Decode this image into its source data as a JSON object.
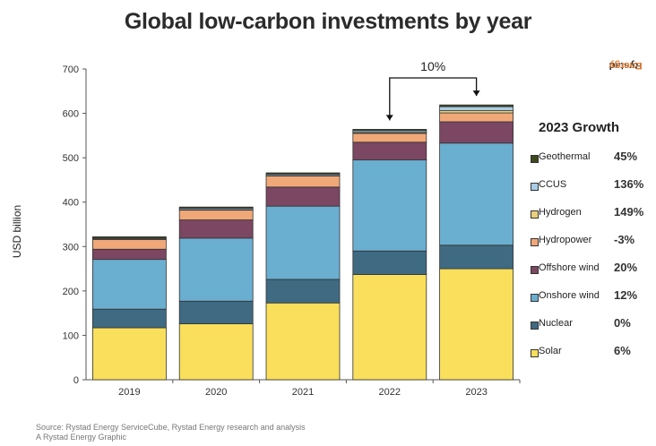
{
  "chart_data": {
    "type": "bar",
    "stacked": true,
    "title": "Global low-carbon investments by year",
    "xlabel": "",
    "ylabel": "USD billion",
    "ylim": [
      0,
      700
    ],
    "yticks": [
      0,
      100,
      200,
      300,
      400,
      500,
      600,
      700
    ],
    "grid": false,
    "categories": [
      "2019",
      "2020",
      "2021",
      "2022",
      "2023"
    ],
    "series": [
      {
        "name": "Solar",
        "color": "#f9df5b",
        "values": [
          117,
          126,
          173,
          237,
          250
        ]
      },
      {
        "name": "Nuclear",
        "color": "#3f6a82",
        "values": [
          42,
          51,
          53,
          53,
          53
        ]
      },
      {
        "name": "Onshore wind",
        "color": "#6aaed0",
        "values": [
          112,
          142,
          165,
          205,
          230
        ]
      },
      {
        "name": "Offshore wind",
        "color": "#7b4762",
        "values": [
          23,
          41,
          43,
          40,
          48
        ]
      },
      {
        "name": "Hydropower",
        "color": "#f0a878",
        "values": [
          22,
          22,
          25,
          20,
          20
        ]
      },
      {
        "name": "Hydrogen",
        "color": "#e8cf7a",
        "values": [
          1,
          1,
          1,
          2,
          5
        ]
      },
      {
        "name": "CCUS",
        "color": "#a9cde6",
        "values": [
          2,
          3,
          3,
          4,
          9
        ]
      },
      {
        "name": "Geothermal",
        "color": "#3d4a1e",
        "values": [
          3,
          3,
          3,
          3,
          4
        ]
      }
    ],
    "annotation": {
      "text": "10%",
      "from": "2022",
      "to": "2023"
    }
  },
  "brand": {
    "part1": "Rystad",
    "part2": "Energy"
  },
  "growth": {
    "title": "2023 Growth",
    "items": [
      {
        "name": "Geothermal",
        "value": "45%",
        "color": "#3d4a1e"
      },
      {
        "name": "CCUS",
        "value": "136%",
        "color": "#a9cde6"
      },
      {
        "name": "Hydrogen",
        "value": "149%",
        "color": "#e8cf7a"
      },
      {
        "name": "Hydropower",
        "value": "-3%",
        "color": "#f0a878"
      },
      {
        "name": "Offshore wind",
        "value": "20%",
        "color": "#7b4762"
      },
      {
        "name": "Onshore wind",
        "value": "12%",
        "color": "#6aaed0"
      },
      {
        "name": "Nuclear",
        "value": "0%",
        "color": "#3f6a82"
      },
      {
        "name": "Solar",
        "value": "6%",
        "color": "#f9df5b"
      }
    ]
  },
  "source": {
    "line1": "Source: Rystad Energy ServiceCube, Rystad Energy research and analysis",
    "line2": "A Rystad Energy Graphic"
  }
}
